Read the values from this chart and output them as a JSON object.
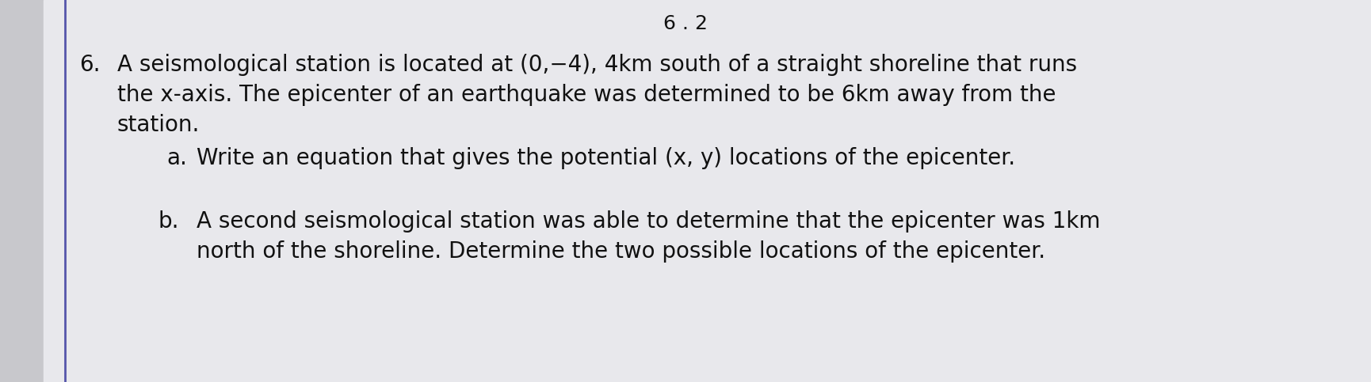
{
  "background_color": "#c8c8cc",
  "paper_color": "#e8e8ec",
  "header_text": "6 . 2",
  "problem_number": "6.",
  "line1": "A seismological station is located at (0,−4), 4km south of a straight shoreline that runs",
  "line2": "the x-axis. The epicenter of an earthquake was determined to be 6km away from the",
  "line3": "station.",
  "part_a_label": "a.",
  "part_a_text": "Write an equation that gives the potential (x, y) locations of the epicenter.",
  "part_b_label": "b.",
  "part_b_line1": "A second seismological station was able to determine that the epicenter was 1km",
  "part_b_line2": "north of the shoreline. Determine the two possible locations of the epicenter.",
  "left_border_color": "#5555aa",
  "font_size_main": 20,
  "font_size_header": 18,
  "text_color": "#111111"
}
